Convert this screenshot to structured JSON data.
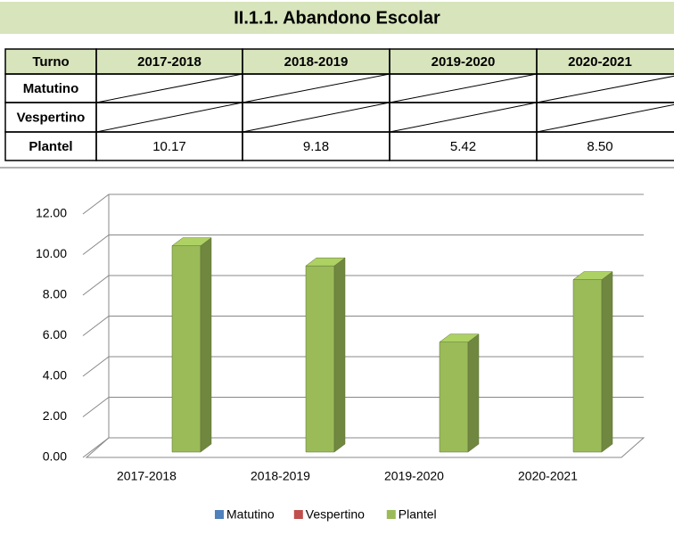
{
  "title": "II.1.1. Abandono Escolar",
  "table": {
    "header": [
      "Turno",
      "2017-2018",
      "2018-2019",
      "2019-2020",
      "2020-2021"
    ],
    "rows": [
      [
        "Matutino"
      ],
      [
        "Vespertino"
      ],
      [
        "Plantel",
        "10.17",
        "9.18",
        "5.42",
        "8.50"
      ]
    ]
  },
  "chart_data": {
    "type": "bar",
    "categories": [
      "2017-2018",
      "2018-2019",
      "2019-2020",
      "2020-2021"
    ],
    "series": [
      {
        "name": "Matutino",
        "color": "#4f81bd",
        "values": [
          null,
          null,
          null,
          null
        ]
      },
      {
        "name": "Vespertino",
        "color": "#c0504d",
        "values": [
          null,
          null,
          null,
          null
        ]
      },
      {
        "name": "Plantel",
        "color": "#9bbb59",
        "values": [
          10.17,
          9.18,
          5.42,
          8.5
        ]
      }
    ],
    "ylim": [
      0,
      12
    ],
    "yticks": [
      {
        "value": 0,
        "label": "0.00"
      },
      {
        "value": 2,
        "label": "2.00"
      },
      {
        "value": 4,
        "label": "4.00"
      },
      {
        "value": 6,
        "label": "6.00"
      },
      {
        "value": 8,
        "label": "8.00"
      },
      {
        "value": 10,
        "label": "10.00"
      },
      {
        "value": 12,
        "label": "12.00"
      }
    ],
    "grid": true,
    "legend": "bottom"
  }
}
